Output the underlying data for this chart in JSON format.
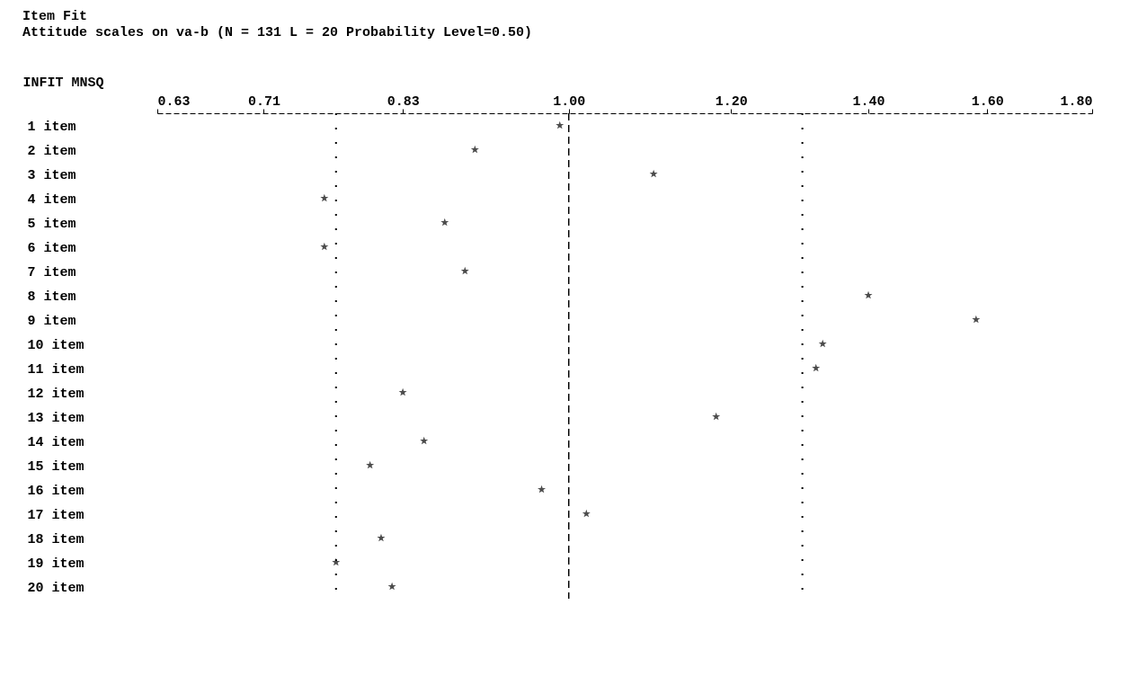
{
  "chart_data": {
    "type": "scatter",
    "title": "Item Fit",
    "subtitle": "Attitude scales on va-b (N = 131 L = 20 Probability Level=0.50)",
    "xlabel": "INFIT MNSQ",
    "orientation": "horizontal",
    "categories": [
      "1 item",
      "2 item",
      "3 item",
      "4 item",
      "5 item",
      "6 item",
      "7 item",
      "8 item",
      "9 item",
      "10 item",
      "11 item",
      "12 item",
      "13 item",
      "14 item",
      "15 item",
      "16 item",
      "17 item",
      "18 item",
      "19 item",
      "20 item"
    ],
    "series": [
      {
        "color": "#000000",
        "values": [
          0.99,
          0.9,
          1.1,
          0.76,
          0.87,
          0.76,
          0.89,
          1.4,
          1.58,
          1.33,
          1.32,
          0.83,
          1.18,
          0.85,
          0.8,
          0.97,
          1.02,
          0.81,
          0.77,
          0.82
        ]
      }
    ],
    "xlim": [
      0.63,
      1.8
    ],
    "xticks": [
      0.63,
      0.71,
      0.83,
      {
        "value": 1,
        "label": "1.00"
      },
      {
        "value": 1.2,
        "label": "1.20"
      },
      {
        "value": 1.4,
        "label": "1.40"
      },
      {
        "value": 1.6,
        "label": "1.60"
      },
      {
        "value": 1.8,
        "label": "1.80"
      }
    ],
    "ref_lines": [
      {
        "axis": "x",
        "value": 0.77,
        "color": "#000000",
        "line_style": "dotted"
      },
      {
        "axis": "x",
        "value": 1.0,
        "color": "#000000",
        "line_style": "dashed"
      },
      {
        "axis": "x",
        "value": 1.3,
        "color": "#000000",
        "line_style": "dotted"
      }
    ],
    "log": "x",
    "marker": "star",
    "grid": false
  }
}
